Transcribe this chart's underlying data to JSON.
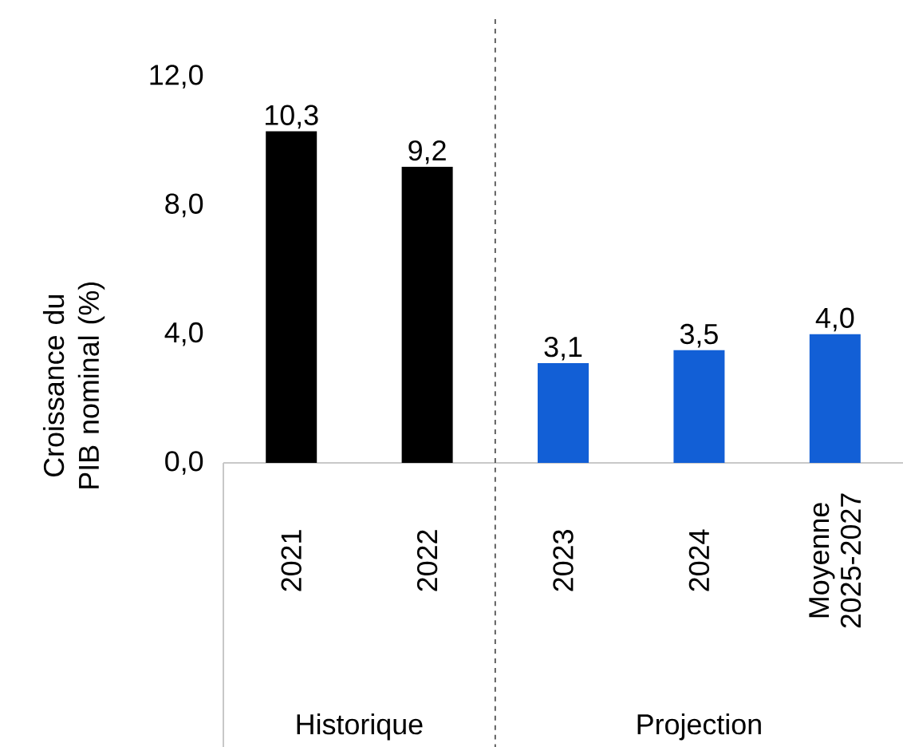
{
  "chart_data": {
    "type": "bar",
    "ylabel": "Croissance du PIB nominal (%)",
    "categories": [
      "2021",
      "2022",
      "2023",
      "2024",
      "Moyenne 2025-2027"
    ],
    "values": [
      10.3,
      9.2,
      3.1,
      3.5,
      4.0
    ],
    "colors": [
      "#000000",
      "#000000",
      "#125fd6",
      "#125fd6",
      "#125fd6"
    ],
    "value_labels": [
      "10,3",
      "9,2",
      "3,1",
      "3,5",
      "4,0"
    ],
    "ylim": [
      0,
      12
    ],
    "yticks": [
      {
        "value": 0,
        "label": "0,0"
      },
      {
        "value": 4,
        "label": "4,0"
      },
      {
        "value": 8,
        "label": "8,0"
      },
      {
        "value": 12,
        "label": "12,0"
      }
    ],
    "annotations": [
      "Historique",
      "Projection"
    ],
    "grid": false
  }
}
